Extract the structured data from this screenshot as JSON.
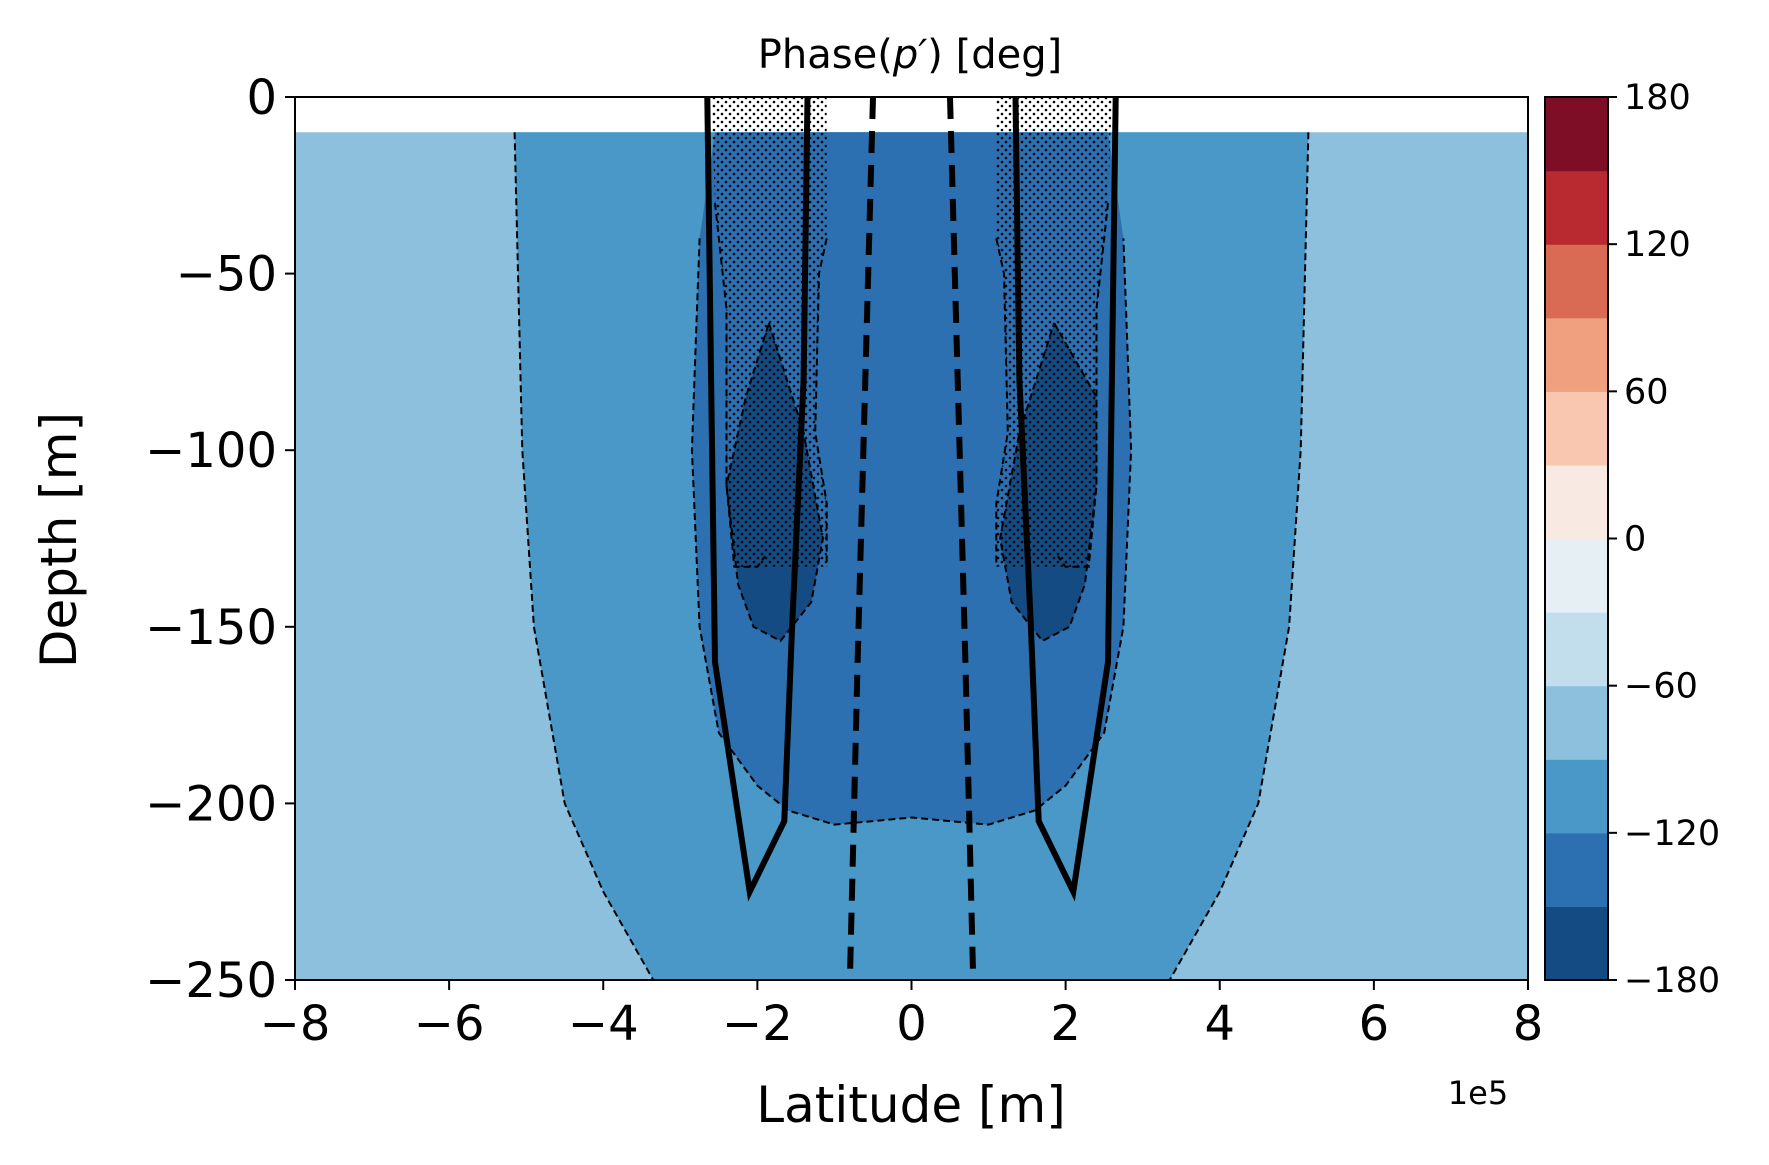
{
  "chart_data": {
    "type": "heatmap",
    "title_prefix": "Phase(",
    "title_var": "p′",
    "title_suffix": ") [deg]",
    "xlabel": "Latitude [m]",
    "ylabel": "Depth [m]",
    "x_offset_label": "1e5",
    "xlim": [
      -8,
      8
    ],
    "ylim": [
      -250,
      0
    ],
    "x_ticks": [
      -8,
      -6,
      -4,
      -2,
      0,
      2,
      4,
      6,
      8
    ],
    "x_tick_labels": [
      "−8",
      "−6",
      "−4",
      "−2",
      "0",
      "2",
      "4",
      "6",
      "8"
    ],
    "y_ticks": [
      0,
      -50,
      -100,
      -150,
      -200,
      -250
    ],
    "y_tick_labels": [
      "0",
      "−50",
      "−100",
      "−150",
      "−200",
      "−250"
    ],
    "colorbar": {
      "range": [
        -180,
        180
      ],
      "ticks": [
        180,
        120,
        60,
        0,
        -60,
        -120,
        -180
      ],
      "tick_labels": [
        "180",
        "120",
        "60",
        "0",
        "−60",
        "−120",
        "−180"
      ],
      "levels": [
        -180,
        -150,
        -120,
        -90,
        -60,
        -30,
        0,
        30,
        60,
        90,
        120,
        150,
        180
      ],
      "colors": [
        "#144b83",
        "#2c70b1",
        "#4a98c8",
        "#8cc0dc",
        "#c2ddec",
        "#e6eff4",
        "#f8e9e3",
        "#f9c7b0",
        "#f0a07f",
        "#d96b55",
        "#b82930",
        "#7e0e26"
      ]
    },
    "regions": [
      {
        "phase_band": [
          -90,
          -60
        ],
        "data_y_top": -10,
        "outline": [
          [
            -8,
            -10
          ],
          [
            8,
            -10
          ],
          [
            8,
            -250
          ],
          [
            -8,
            -250
          ]
        ]
      },
      {
        "phase_band": [
          -120,
          -90
        ],
        "outline": [
          [
            -5.15,
            -10
          ],
          [
            5.15,
            -10
          ],
          [
            5.05,
            -100
          ],
          [
            4.9,
            -150
          ],
          [
            4.5,
            -200
          ],
          [
            4.0,
            -225
          ],
          [
            3.35,
            -250
          ],
          [
            -3.35,
            -250
          ],
          [
            -4.0,
            -225
          ],
          [
            -4.5,
            -200
          ],
          [
            -4.9,
            -150
          ],
          [
            -5.05,
            -100
          ]
        ]
      },
      {
        "phase_band": [
          -150,
          -120
        ],
        "outline": [
          [
            -2.55,
            -10
          ],
          [
            2.55,
            -10
          ],
          [
            2.75,
            -40
          ],
          [
            2.8,
            -70
          ],
          [
            2.85,
            -100
          ],
          [
            2.75,
            -150
          ],
          [
            2.5,
            -180
          ],
          [
            2.0,
            -195
          ],
          [
            1.6,
            -202
          ],
          [
            1.0,
            -206
          ],
          [
            0.5,
            -205
          ],
          [
            0,
            -204
          ],
          [
            -0.5,
            -205
          ],
          [
            -1.0,
            -206
          ],
          [
            -1.6,
            -202
          ],
          [
            -2.0,
            -195
          ],
          [
            -2.5,
            -180
          ],
          [
            -2.75,
            -150
          ],
          [
            -2.85,
            -100
          ],
          [
            -2.8,
            -70
          ],
          [
            -2.75,
            -40
          ]
        ]
      },
      {
        "phase_band": [
          -180,
          -150
        ],
        "outline": [
          [
            -1.85,
            -64
          ],
          [
            -1.4,
            -95
          ],
          [
            -1.15,
            -125
          ],
          [
            -1.3,
            -143
          ],
          [
            -1.7,
            -154
          ],
          [
            -2.05,
            -150
          ],
          [
            -2.25,
            -138
          ],
          [
            -2.4,
            -110
          ],
          [
            -2.15,
            -85
          ]
        ]
      },
      {
        "phase_band": [
          -180,
          -150
        ],
        "outline": [
          [
            1.85,
            -64
          ],
          [
            2.4,
            -85
          ],
          [
            2.4,
            -110
          ],
          [
            2.25,
            -138
          ],
          [
            2.05,
            -150
          ],
          [
            1.7,
            -154
          ],
          [
            1.3,
            -143
          ],
          [
            1.15,
            -125
          ],
          [
            1.4,
            -95
          ]
        ]
      }
    ],
    "stippled_regions": [
      {
        "outline": [
          [
            -2.6,
            0
          ],
          [
            -1.1,
            0
          ],
          [
            -1.1,
            -40
          ],
          [
            -1.2,
            -50
          ],
          [
            -1.25,
            -95
          ],
          [
            -1.1,
            -115
          ],
          [
            -1.1,
            -133
          ],
          [
            -2.3,
            -133
          ],
          [
            -2.4,
            -110
          ],
          [
            -2.4,
            -60
          ],
          [
            -2.55,
            -30
          ]
        ]
      },
      {
        "outline": [
          [
            1.1,
            0
          ],
          [
            2.6,
            0
          ],
          [
            2.55,
            -30
          ],
          [
            2.4,
            -60
          ],
          [
            2.4,
            -110
          ],
          [
            2.3,
            -133
          ],
          [
            1.1,
            -133
          ],
          [
            1.1,
            -115
          ],
          [
            1.25,
            -95
          ],
          [
            1.2,
            -50
          ],
          [
            1.1,
            -40
          ]
        ]
      }
    ],
    "contours_dashed_thin": [
      [
        [
          -5.15,
          -10
        ],
        [
          -5.05,
          -100
        ],
        [
          -4.9,
          -150
        ],
        [
          -4.5,
          -200
        ],
        [
          -4.0,
          -225
        ],
        [
          -3.35,
          -250
        ]
      ],
      [
        [
          5.15,
          -10
        ],
        [
          5.05,
          -100
        ],
        [
          4.9,
          -150
        ],
        [
          4.5,
          -200
        ],
        [
          4.0,
          -225
        ],
        [
          3.35,
          -250
        ]
      ],
      [
        [
          -2.75,
          -40
        ],
        [
          -2.8,
          -70
        ],
        [
          -2.85,
          -100
        ],
        [
          -2.75,
          -150
        ],
        [
          -2.5,
          -180
        ],
        [
          -2.0,
          -195
        ],
        [
          -1.6,
          -202
        ],
        [
          -1.0,
          -206
        ],
        [
          -0.5,
          -205
        ],
        [
          0,
          -204
        ],
        [
          0.5,
          -205
        ],
        [
          1.0,
          -206
        ],
        [
          1.6,
          -202
        ],
        [
          2.0,
          -195
        ],
        [
          2.5,
          -180
        ],
        [
          2.75,
          -150
        ],
        [
          2.85,
          -100
        ],
        [
          2.8,
          -70
        ],
        [
          2.75,
          -40
        ]
      ],
      [
        [
          -1.85,
          -64
        ],
        [
          -1.4,
          -95
        ],
        [
          -1.15,
          -125
        ],
        [
          -1.3,
          -143
        ],
        [
          -1.7,
          -154
        ],
        [
          -2.05,
          -150
        ],
        [
          -2.25,
          -138
        ],
        [
          -2.4,
          -110
        ],
        [
          -2.15,
          -85
        ],
        [
          -1.85,
          -64
        ]
      ],
      [
        [
          1.85,
          -64
        ],
        [
          2.4,
          -85
        ],
        [
          2.4,
          -110
        ],
        [
          2.25,
          -138
        ],
        [
          2.05,
          -150
        ],
        [
          1.7,
          -154
        ],
        [
          1.3,
          -143
        ],
        [
          1.15,
          -125
        ],
        [
          1.4,
          -95
        ],
        [
          1.85,
          -64
        ]
      ],
      [
        [
          -2.55,
          -30
        ],
        [
          -2.4,
          -60
        ],
        [
          -2.4,
          -110
        ],
        [
          -2.3,
          -133
        ],
        [
          -2.0,
          -133
        ],
        [
          -1.9,
          -130
        ]
      ],
      [
        [
          2.55,
          -30
        ],
        [
          2.4,
          -60
        ],
        [
          2.4,
          -110
        ],
        [
          2.3,
          -133
        ],
        [
          2.0,
          -133
        ],
        [
          1.9,
          -130
        ]
      ],
      [
        [
          -1.1,
          -40
        ],
        [
          -1.2,
          -50
        ],
        [
          -1.25,
          -95
        ],
        [
          -1.1,
          -115
        ],
        [
          -1.1,
          -133
        ]
      ],
      [
        [
          1.1,
          -40
        ],
        [
          1.2,
          -50
        ],
        [
          1.25,
          -95
        ],
        [
          1.1,
          -115
        ],
        [
          1.1,
          -133
        ]
      ]
    ],
    "contours_solid_thick": [
      [
        [
          -2.65,
          0
        ],
        [
          -2.6,
          -80
        ],
        [
          -2.55,
          -160
        ],
        [
          -2.1,
          -225
        ],
        [
          -1.65,
          -205
        ],
        [
          -1.55,
          -150
        ],
        [
          -1.4,
          -80
        ],
        [
          -1.35,
          0
        ]
      ],
      [
        [
          2.65,
          0
        ],
        [
          2.6,
          -80
        ],
        [
          2.55,
          -160
        ],
        [
          2.1,
          -225
        ],
        [
          1.65,
          -205
        ],
        [
          1.55,
          -150
        ],
        [
          1.4,
          -80
        ],
        [
          1.35,
          0
        ]
      ]
    ],
    "contours_dashed_thick": [
      [
        [
          -0.5,
          0
        ],
        [
          -0.6,
          -80
        ],
        [
          -0.7,
          -160
        ],
        [
          -0.8,
          -250
        ]
      ],
      [
        [
          0.5,
          0
        ],
        [
          0.6,
          -80
        ],
        [
          0.7,
          -160
        ],
        [
          0.8,
          -250
        ]
      ]
    ]
  }
}
